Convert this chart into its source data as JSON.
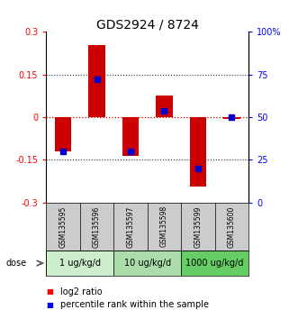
{
  "title": "GDS2924 / 8724",
  "samples": [
    "GSM135595",
    "GSM135596",
    "GSM135597",
    "GSM135598",
    "GSM135599",
    "GSM135600"
  ],
  "log2_ratio": [
    -0.12,
    0.255,
    -0.135,
    0.075,
    -0.245,
    -0.005
  ],
  "percentile_rank": [
    30,
    72,
    30,
    54,
    20,
    50
  ],
  "ylim": [
    -0.3,
    0.3
  ],
  "yticks_left": [
    -0.3,
    -0.15,
    0,
    0.15,
    0.3
  ],
  "ytick_labels_left": [
    "-0.3",
    "-0.15",
    "0",
    "0.15",
    "0.3"
  ],
  "right_pct_ticks": [
    0,
    25,
    50,
    75,
    100
  ],
  "right_pct_labels": [
    "0",
    "25",
    "50",
    "75",
    "100%"
  ],
  "dose_groups": [
    {
      "label": "1 ug/kg/d",
      "start": 0,
      "end": 2,
      "color": "#cceecc"
    },
    {
      "label": "10 ug/kg/d",
      "start": 2,
      "end": 4,
      "color": "#aaddaa"
    },
    {
      "label": "1000 ug/kg/d",
      "start": 4,
      "end": 6,
      "color": "#66cc66"
    }
  ],
  "bar_color": "#cc0000",
  "dot_color": "#0000cc",
  "bar_width": 0.5,
  "dot_size": 4,
  "hline_color": "#cc0000",
  "grid_color": "#333333",
  "sample_box_color": "#cccccc",
  "title_fontsize": 10,
  "tick_fontsize": 7,
  "label_fontsize": 7,
  "sample_fontsize": 5.5,
  "legend_fontsize": 7,
  "dose_fontsize": 7
}
